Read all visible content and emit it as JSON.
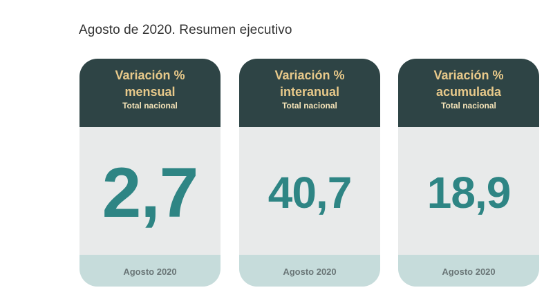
{
  "title": "Agosto de 2020. Resumen ejecutivo",
  "cards": [
    {
      "line1": "Variación %",
      "line2": "mensual",
      "sub": "Total nacional",
      "value": "2,7",
      "footer": "Agosto 2020"
    },
    {
      "line1": "Variación %",
      "line2": "interanual",
      "sub": "Total nacional",
      "value": "40,7",
      "footer": "Agosto 2020"
    },
    {
      "line1": "Variación %",
      "line2": "acumulada",
      "sub": "Total nacional",
      "value": "18,9",
      "footer": "Agosto 2020"
    }
  ],
  "colors": {
    "header_bg": "#2e4445",
    "header_text": "#e8c98a",
    "value_text": "#2e8584",
    "card_bg": "#e8eaea",
    "footer_bg": "#c6dcdb"
  }
}
